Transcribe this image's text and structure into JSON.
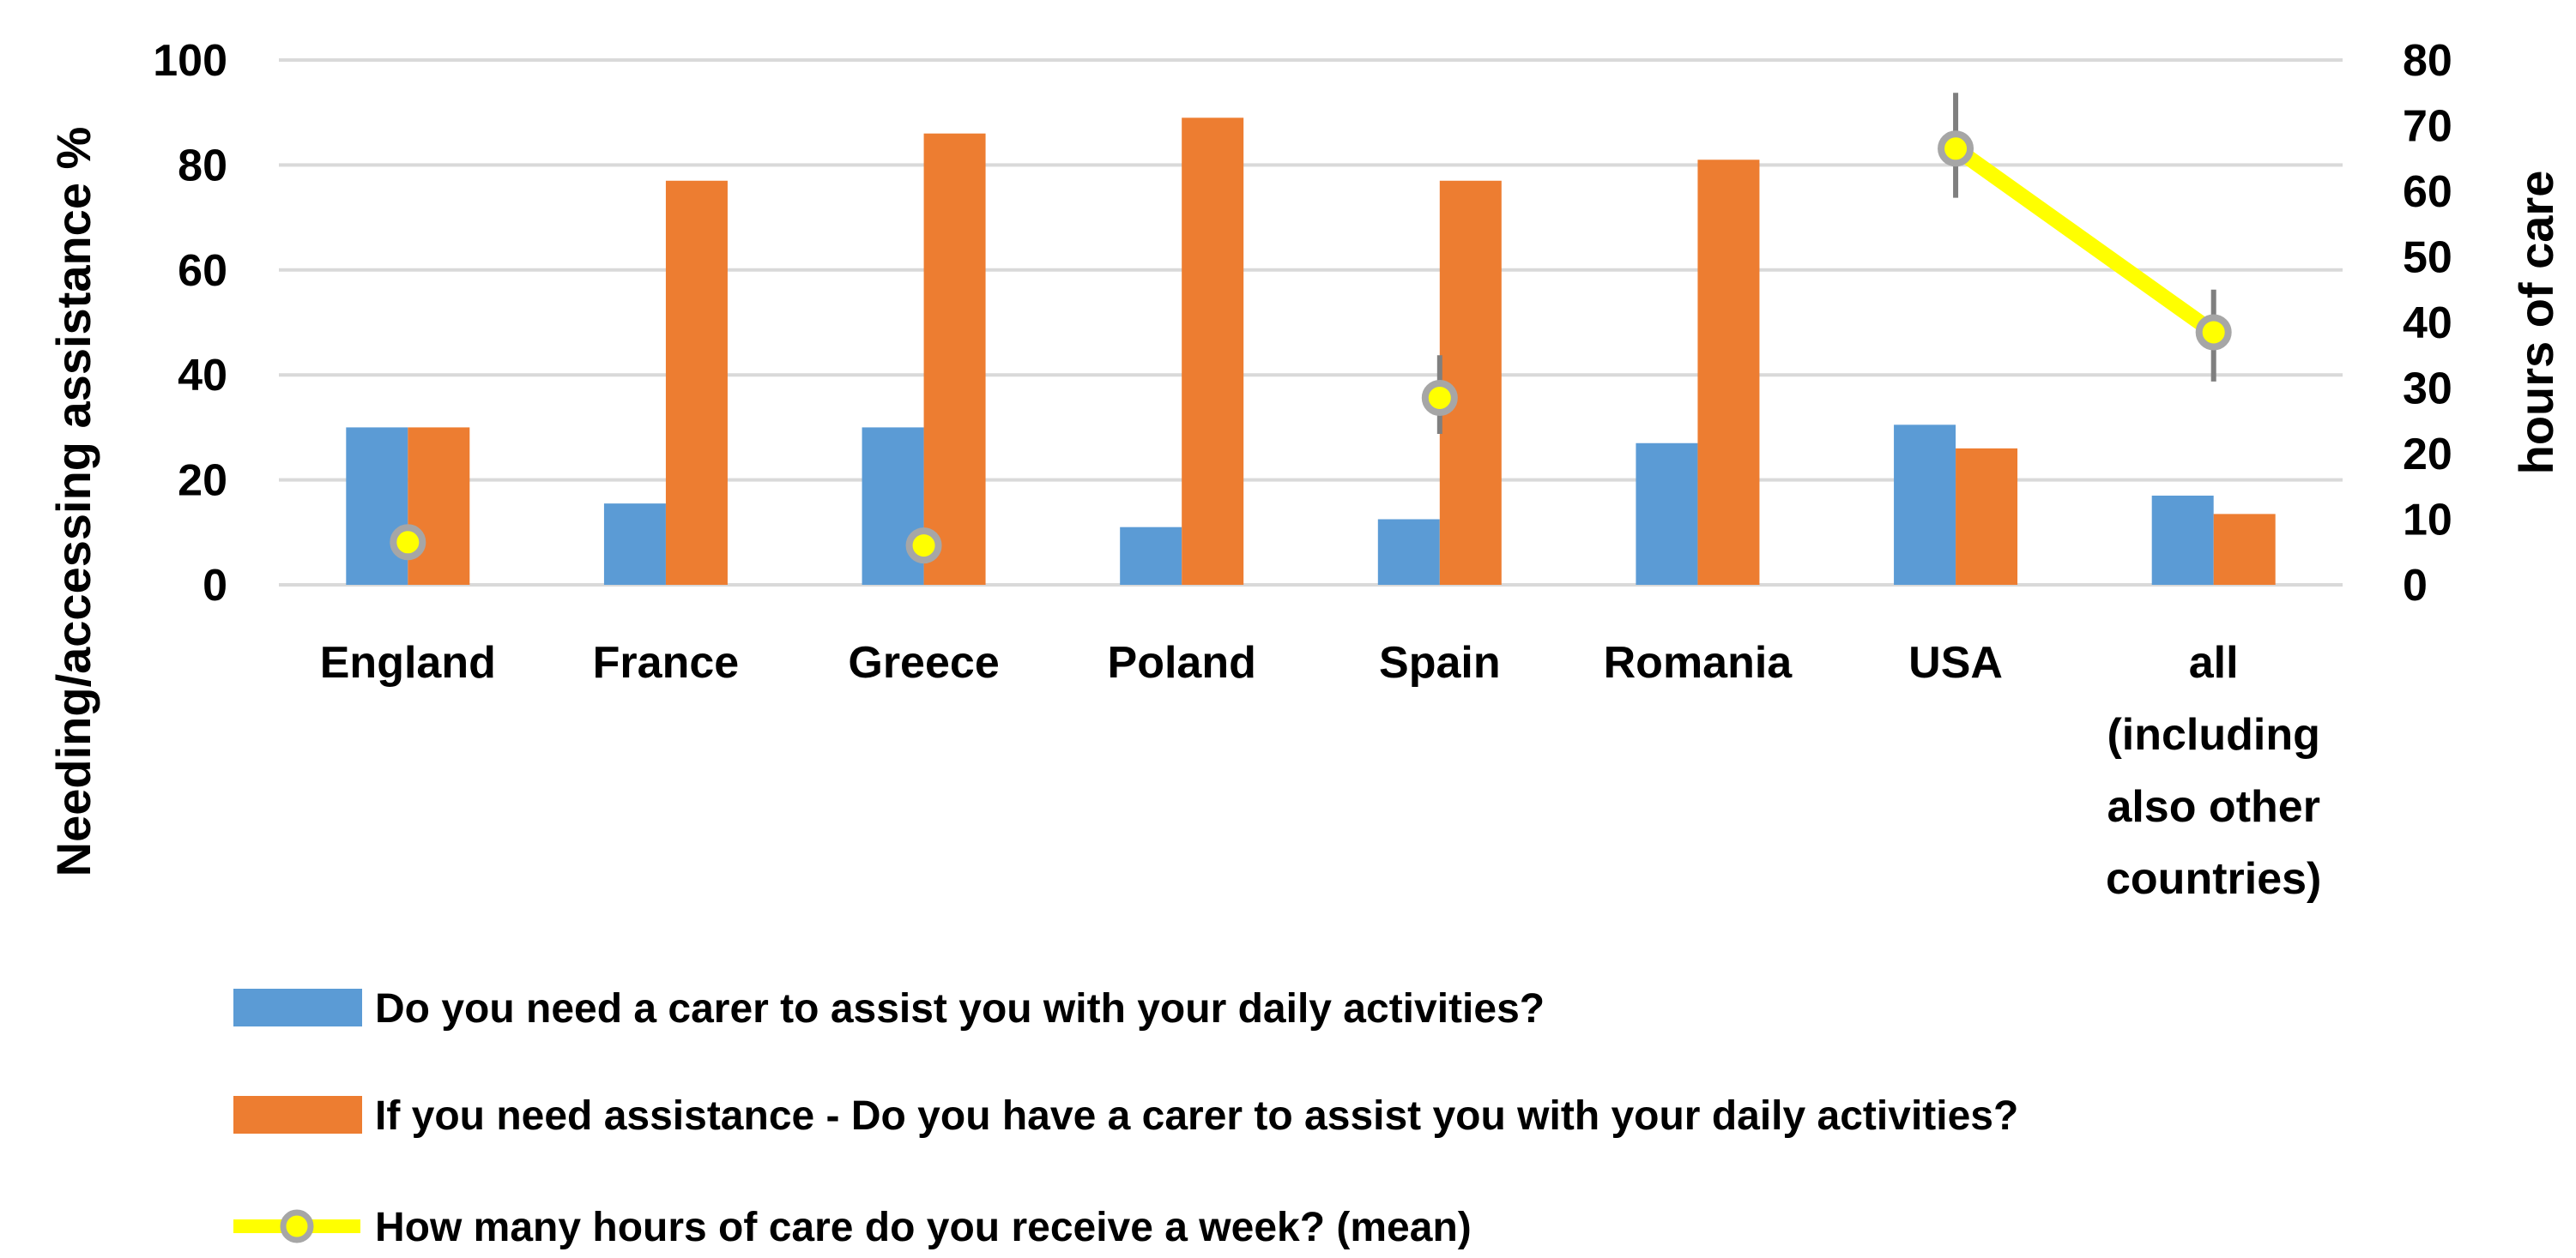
{
  "chart_data": {
    "type": "bar",
    "categories": [
      [
        "England"
      ],
      [
        "France"
      ],
      [
        "Greece"
      ],
      [
        "Poland"
      ],
      [
        "Spain"
      ],
      [
        "Romania"
      ],
      [
        "USA"
      ],
      [
        "all",
        "(including",
        "also other",
        "countries)"
      ]
    ],
    "series": [
      {
        "name": "Do you need a carer to assist you with your daily activities?",
        "axis": "left",
        "kind": "bar",
        "color": "#5b9bd5",
        "values": [
          30,
          15.5,
          30,
          11,
          12.5,
          27,
          30.5,
          17
        ]
      },
      {
        "name": "If you need assistance - Do you have a carer to assist you with your daily activities?",
        "axis": "left",
        "kind": "bar",
        "color": "#ed7d31",
        "values": [
          30,
          77,
          86,
          89,
          77,
          81,
          26,
          13.5
        ]
      },
      {
        "name": "How many hours of care do you receive a week? (mean)",
        "axis": "right",
        "kind": "line-marker",
        "color": "#ffff00",
        "marker_edge": "#a6a6a6",
        "values": [
          6.5,
          null,
          6,
          null,
          28.5,
          null,
          66.5,
          38.5
        ],
        "error_low": [
          5,
          null,
          4.5,
          null,
          23,
          null,
          59,
          31
        ],
        "error_high": [
          9,
          null,
          8.5,
          null,
          35,
          null,
          75,
          45
        ],
        "lines_between": [
          [
            6,
            7
          ]
        ]
      }
    ],
    "y_left": {
      "label": "Needing/accessing assistance %",
      "lim": [
        0,
        100
      ],
      "ticks": [
        "0",
        "20",
        "40",
        "60",
        "80",
        "100"
      ]
    },
    "y_right": {
      "label": "hours of care",
      "lim": [
        0,
        80
      ],
      "ticks": [
        "0",
        "10",
        "20",
        "30",
        "40",
        "50",
        "60",
        "70",
        "80"
      ]
    },
    "grid": true,
    "legend_position": "bottom"
  }
}
